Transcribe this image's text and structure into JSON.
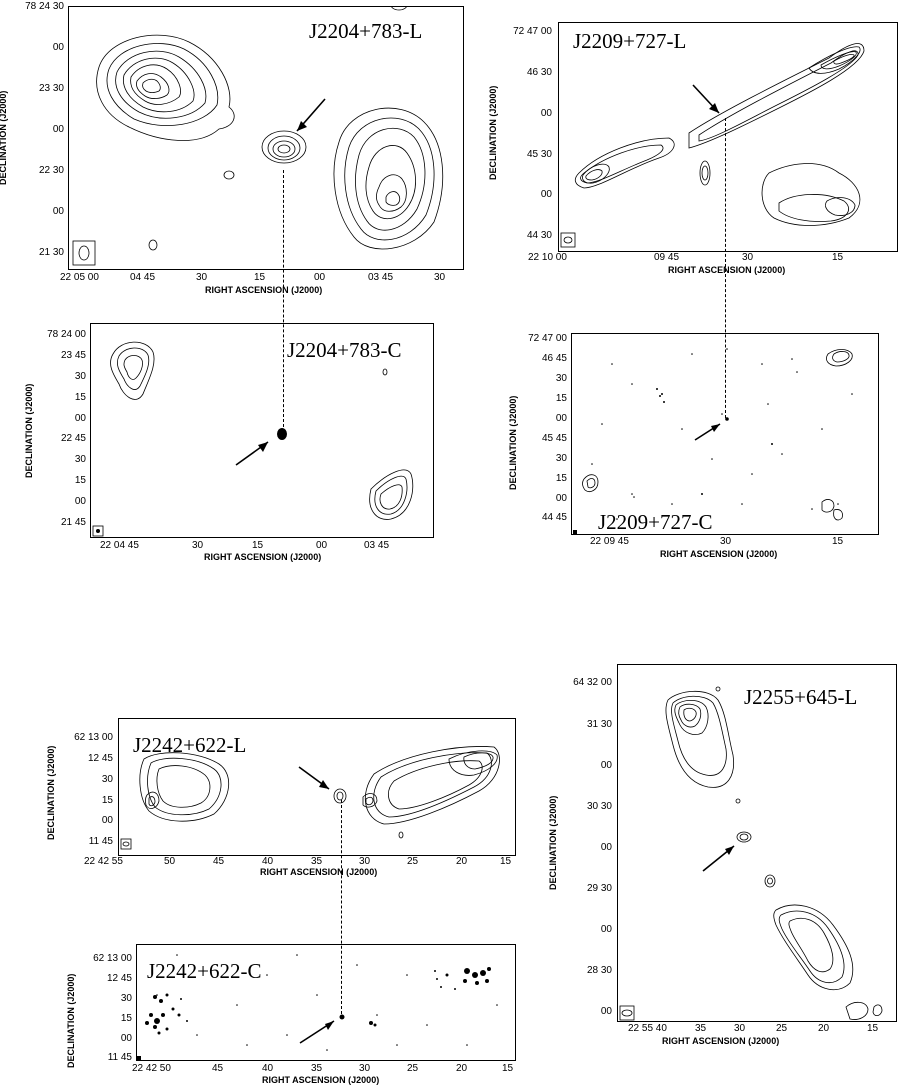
{
  "panels": {
    "p1": {
      "title": "J2204+783-L",
      "yticks": [
        "78 24 30",
        "00",
        "23 30",
        "00",
        "22 30",
        "00",
        "21 30"
      ],
      "xticks": [
        "22 05 00",
        "04 45",
        "30",
        "15",
        "00",
        "03 45",
        "30"
      ],
      "xlabel": "RIGHT ASCENSION (J2000)",
      "ylabel": "DECLINATION (J2000)"
    },
    "p2": {
      "title": "J2209+727-L",
      "yticks": [
        "72 47 00",
        "46 30",
        "00",
        "45 30",
        "00",
        "44 30"
      ],
      "xticks": [
        "22 10 00",
        "09 45",
        "30",
        "15"
      ],
      "xlabel": "RIGHT ASCENSION (J2000)",
      "ylabel": "DECLINATION (J2000)"
    },
    "p3": {
      "title": "J2204+783-C",
      "yticks": [
        "78 24 00",
        "23 45",
        "30",
        "15",
        "00",
        "22 45",
        "30",
        "15",
        "00",
        "21 45"
      ],
      "xticks": [
        "22 04 45",
        "30",
        "15",
        "00",
        "03 45"
      ],
      "xlabel": "RIGHT ASCENSION (J2000)",
      "ylabel": "DECLINATION (J2000)"
    },
    "p4": {
      "title": "J2209+727-C",
      "yticks": [
        "72 47 00",
        "46 45",
        "30",
        "15",
        "00",
        "45 45",
        "30",
        "15",
        "00",
        "44 45"
      ],
      "xticks": [
        "22 09 45",
        "30",
        "15"
      ],
      "xlabel": "RIGHT ASCENSION (J2000)",
      "ylabel": "DECLINATION (J2000)"
    },
    "p5": {
      "title": "J2242+622-L",
      "yticks": [
        "62 13 00",
        "12 45",
        "30",
        "15",
        "00",
        "11 45"
      ],
      "xticks": [
        "22 42 55",
        "50",
        "45",
        "40",
        "35",
        "30",
        "25",
        "20",
        "15"
      ],
      "xlabel": "RIGHT ASCENSION (J2000)",
      "ylabel": "DECLINATION (J2000)"
    },
    "p6": {
      "title": "J2255+645-L",
      "yticks": [
        "64 32 00",
        "31 30",
        "00",
        "30 30",
        "00",
        "29 30",
        "00",
        "28 30",
        "00"
      ],
      "xticks": [
        "22 55 40",
        "35",
        "30",
        "25",
        "20",
        "15"
      ],
      "xlabel": "RIGHT ASCENSION (J2000)",
      "ylabel": "DECLINATION (J2000)"
    },
    "p7": {
      "title": "J2242+622-C",
      "yticks": [
        "62 13 00",
        "12 45",
        "30",
        "15",
        "00",
        "11 45"
      ],
      "xticks": [
        "22 42 50",
        "45",
        "40",
        "35",
        "30",
        "25",
        "20",
        "15"
      ],
      "xlabel": "RIGHT ASCENSION (J2000)",
      "ylabel": "DECLINATION (J2000)"
    }
  }
}
